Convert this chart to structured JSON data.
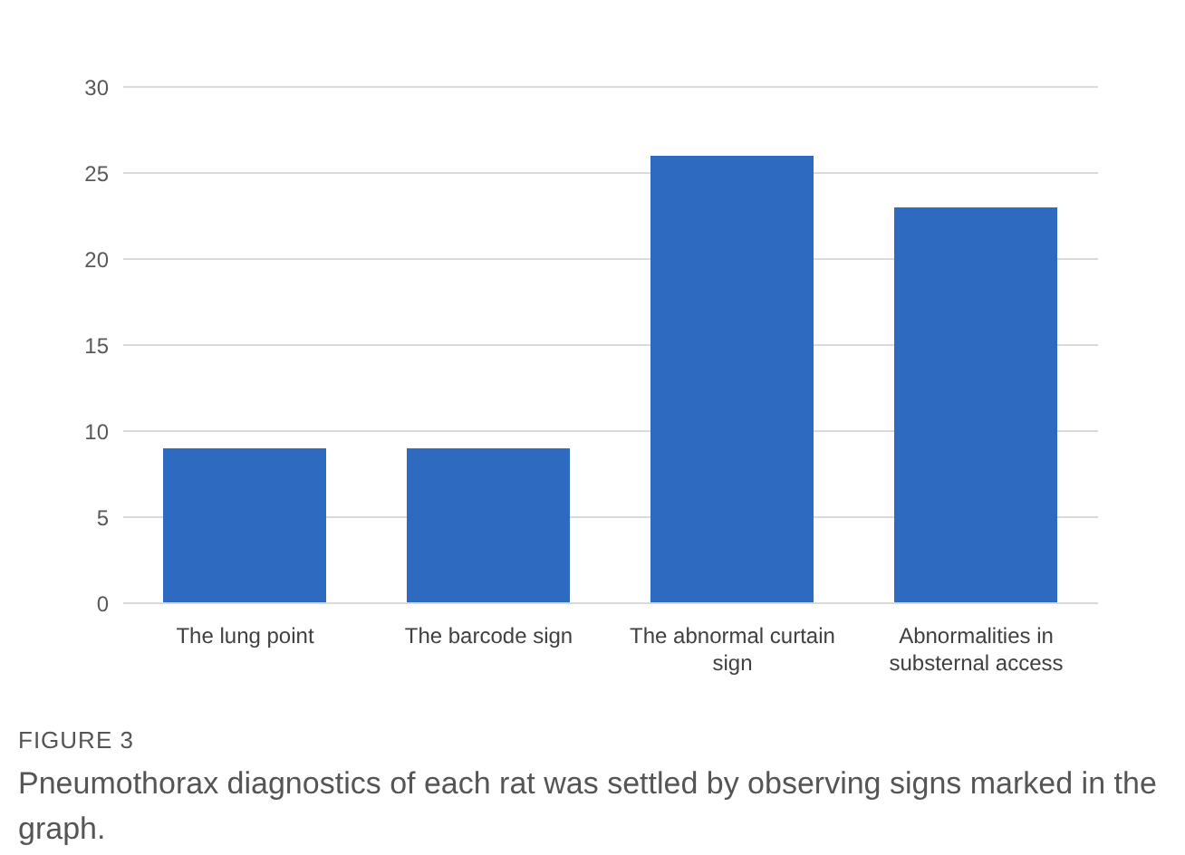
{
  "chart_data": {
    "type": "bar",
    "categories": [
      "The lung point",
      "The barcode sign",
      "The abnormal curtain sign",
      "Abnormalities in substernal access"
    ],
    "values": [
      9,
      9,
      26,
      23
    ],
    "color": "#2e6bc0",
    "ylim": [
      0,
      30
    ],
    "yticks": [
      0,
      5,
      10,
      15,
      20,
      25,
      30
    ],
    "grid": "y",
    "annotations": [
      "FIGURE 3",
      "Pneumothorax diagnostics of each rat was settled by observing signs marked in the graph."
    ]
  }
}
